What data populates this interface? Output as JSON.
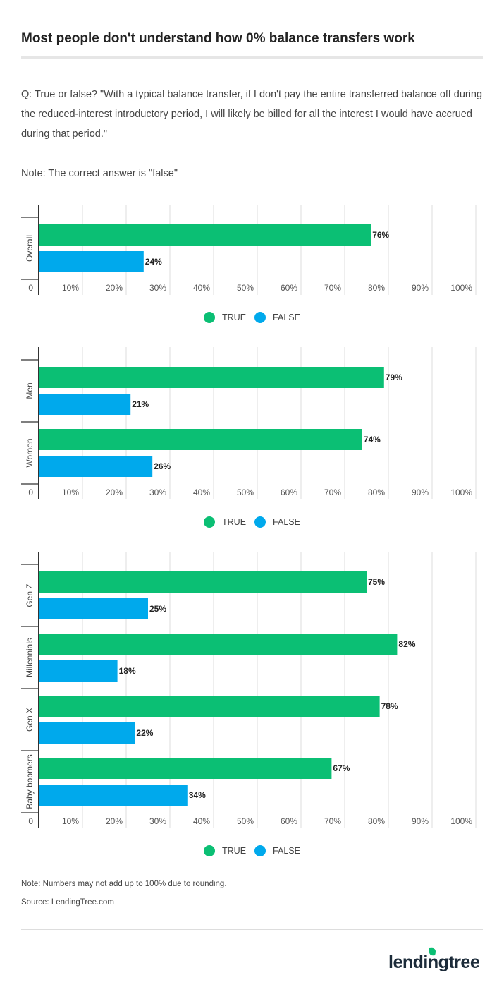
{
  "title": "Most people don't understand how 0% balance transfers work",
  "question": "Q: True or false? \"With a typical balance transfer, if I don't pay the entire transferred balance off during the reduced-interest introductory period, I will likely be billed for all the interest I would have accrued during that period.\"",
  "note": "Note: The correct answer is \"false\"",
  "colors": {
    "true": "#0bbf74",
    "false": "#00a9ec"
  },
  "legend": {
    "true": "TRUE",
    "false": "FALSE"
  },
  "chart_data": [
    {
      "type": "bar",
      "orientation": "horizontal",
      "categories": [
        "Overall"
      ],
      "series": [
        {
          "name": "TRUE",
          "values": [
            76
          ]
        },
        {
          "name": "FALSE",
          "values": [
            24
          ]
        }
      ],
      "xlim": [
        0,
        100
      ],
      "xticks": [
        "0",
        "10%",
        "20%",
        "30%",
        "40%",
        "50%",
        "60%",
        "70%",
        "80%",
        "90%",
        "100%"
      ],
      "data_labels": [
        [
          "76%"
        ],
        [
          "24%"
        ]
      ],
      "legend": "bottom",
      "grid": true
    },
    {
      "type": "bar",
      "orientation": "horizontal",
      "categories": [
        "Men",
        "Women"
      ],
      "series": [
        {
          "name": "TRUE",
          "values": [
            79,
            74
          ]
        },
        {
          "name": "FALSE",
          "values": [
            21,
            26
          ]
        }
      ],
      "xlim": [
        0,
        100
      ],
      "xticks": [
        "0",
        "10%",
        "20%",
        "30%",
        "40%",
        "50%",
        "60%",
        "70%",
        "80%",
        "90%",
        "100%"
      ],
      "data_labels": [
        [
          "79%",
          "74%"
        ],
        [
          "21%",
          "26%"
        ]
      ],
      "legend": "bottom",
      "grid": true
    },
    {
      "type": "bar",
      "orientation": "horizontal",
      "categories": [
        "Gen Z",
        "Millennials",
        "Gen X",
        "Baby boomers"
      ],
      "series": [
        {
          "name": "TRUE",
          "values": [
            75,
            82,
            78,
            67
          ]
        },
        {
          "name": "FALSE",
          "values": [
            25,
            18,
            22,
            34
          ]
        }
      ],
      "xlim": [
        0,
        100
      ],
      "xticks": [
        "0",
        "10%",
        "20%",
        "30%",
        "40%",
        "50%",
        "60%",
        "70%",
        "80%",
        "90%",
        "100%"
      ],
      "data_labels": [
        [
          "75%",
          "82%",
          "78%",
          "67%"
        ],
        [
          "25%",
          "18%",
          "22%",
          "34%"
        ]
      ],
      "legend": "bottom",
      "grid": true
    }
  ],
  "footer": {
    "rounding_note": "Note: Numbers may not add up to 100% due to rounding.",
    "source": "Source: LendingTree.com"
  },
  "logo_text": "lendingtree"
}
